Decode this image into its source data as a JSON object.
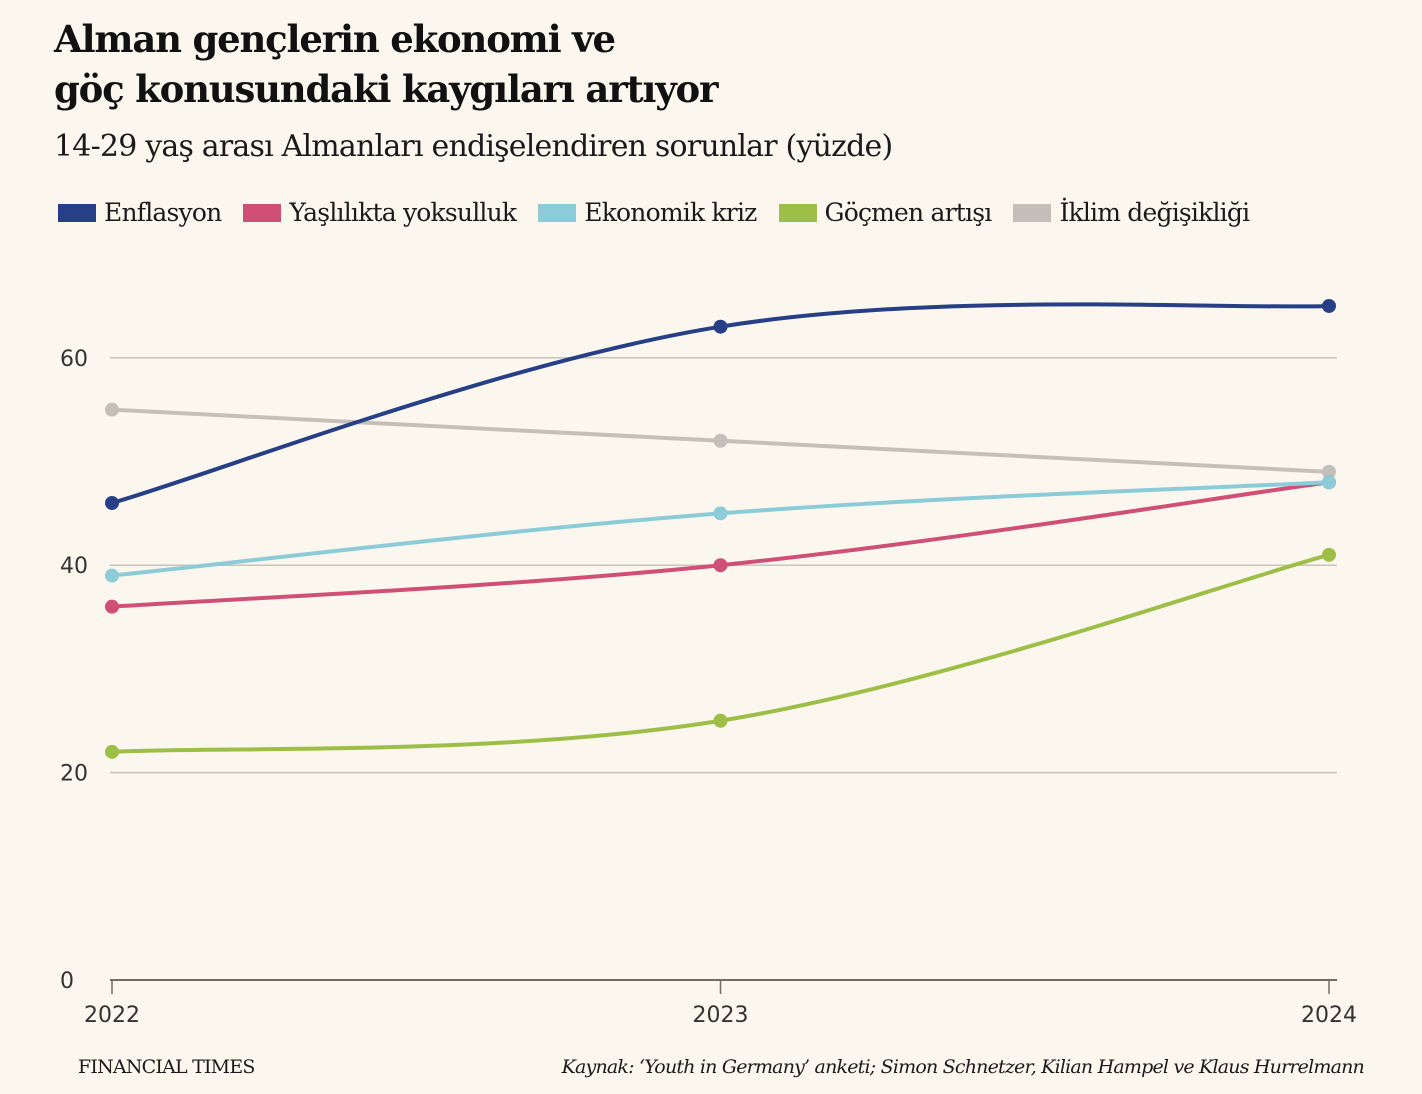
{
  "header": {
    "title_line1": "Alman gençlerin ekonomi ve",
    "title_line2": "göç konusundaki kaygıları artıyor",
    "subtitle": "14-29 yaş arası Almanları endişelendiren sorunlar (yüzde)"
  },
  "footer": {
    "brand": "FINANCIAL TIMES",
    "source": "Kaynak: ‘Youth in Germany’ anketi; Simon Schnetzer, Kilian Hampel ve Klaus Hurrelmann"
  },
  "chart_data": {
    "type": "line",
    "title": "Alman gençlerin ekonomi ve göç konusundaki kaygıları artıyor",
    "subtitle": "14-29 yaş arası Almanları endişelendiren sorunlar (yüzde)",
    "xlabel": "",
    "ylabel": "yüzde",
    "x": [
      "2022",
      "2023",
      "2024"
    ],
    "ylim": [
      0,
      65
    ],
    "yticks": [
      0,
      20,
      40,
      60
    ],
    "grid": true,
    "legend_position": "top",
    "series": [
      {
        "name": "Enflasyon",
        "color": "#263f86",
        "values": [
          46,
          63,
          65
        ]
      },
      {
        "name": "Yaşlılıkta yoksulluk",
        "color": "#d04f76",
        "values": [
          36,
          40,
          48
        ]
      },
      {
        "name": "Ekonomik kriz",
        "color": "#8ccbd8",
        "values": [
          39,
          45,
          48
        ]
      },
      {
        "name": "Göçmen artışı",
        "color": "#9dbf47",
        "values": [
          22,
          25,
          41
        ]
      },
      {
        "name": "İklim değişikliği",
        "color": "#c4bfb8",
        "values": [
          55,
          52,
          49
        ]
      }
    ]
  }
}
